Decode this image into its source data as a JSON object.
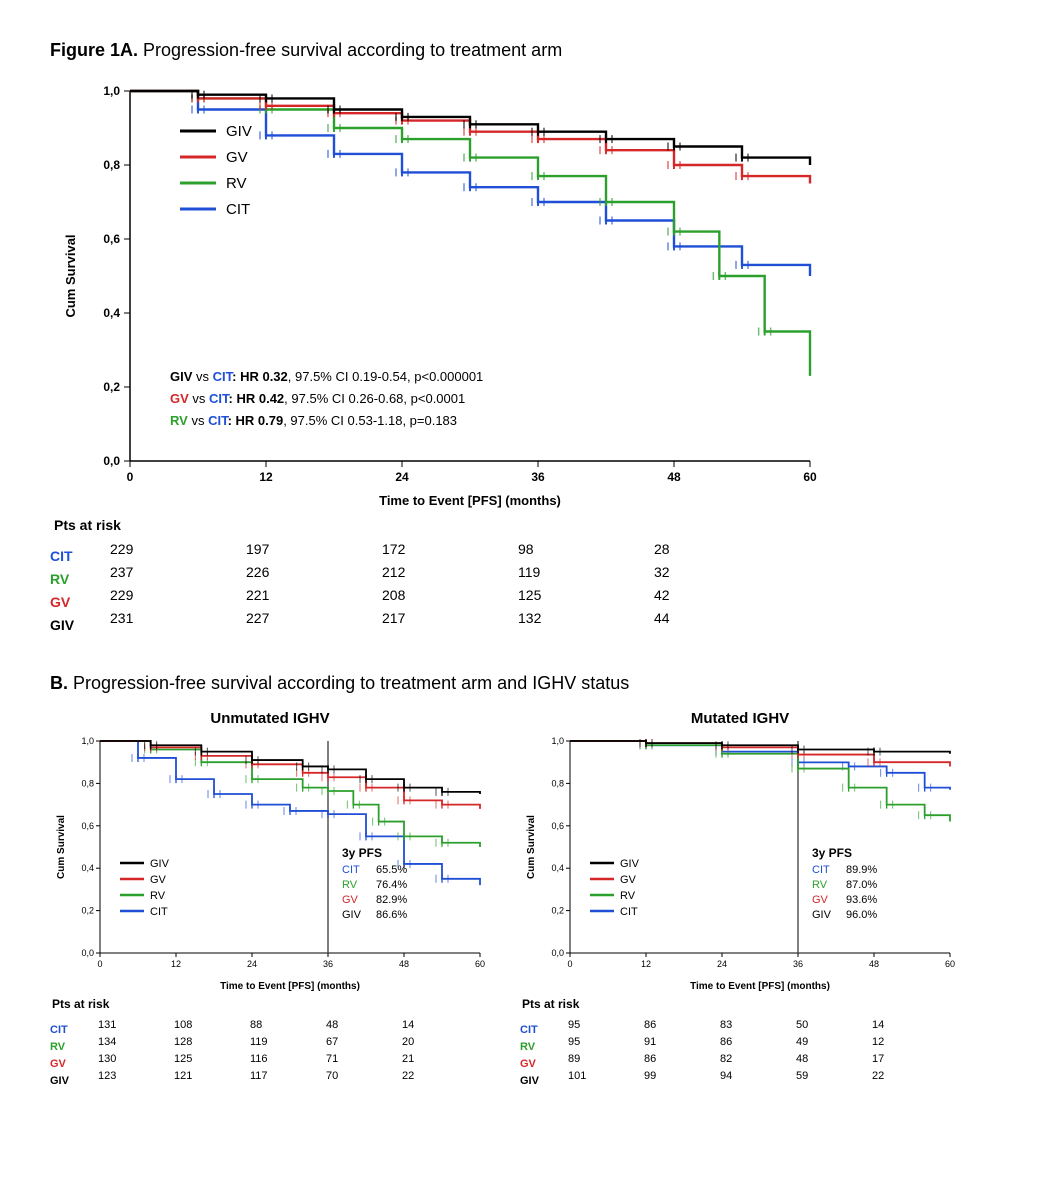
{
  "colors": {
    "GIV": "#000000",
    "GV": "#d62728",
    "RV": "#2ca02c",
    "CIT": "#1f4fd6",
    "axis": "#000000",
    "bg": "#ffffff"
  },
  "figureA": {
    "title_prefix": "Figure 1A.",
    "title_rest": " Progression-free survival according to treatment arm",
    "ylabel": "Cum Survival",
    "xlabel": "Time to Event [PFS] (months)",
    "xlim": [
      0,
      60
    ],
    "ylim": [
      0,
      1.0
    ],
    "xticks": [
      0,
      12,
      24,
      36,
      48,
      60
    ],
    "yticks": [
      "0,0",
      "0,2",
      "0,4",
      "0,6",
      "0,8",
      "1,0"
    ],
    "ytick_vals": [
      0.0,
      0.2,
      0.4,
      0.6,
      0.8,
      1.0
    ],
    "legend": [
      "GIV",
      "GV",
      "RV",
      "CIT"
    ],
    "stats": [
      {
        "arm1": "GIV",
        "arm2": "CIT",
        "text": ": HR 0.32, 97.5% CI 0.19-0.54, p<0.000001",
        "hr_bold": "HR 0.32"
      },
      {
        "arm1": "GV",
        "arm2": "CIT",
        "text": ": HR 0.42, 97.5% CI 0.26-0.68, p<0.0001",
        "hr_bold": "HR 0.42"
      },
      {
        "arm1": "RV",
        "arm2": "CIT",
        "text": ": HR 0.79, 97.5% CI 0.53-1.18, p=0.183",
        "hr_bold": "HR 0.79"
      }
    ],
    "curves": {
      "GIV": [
        [
          0,
          1.0
        ],
        [
          6,
          0.99
        ],
        [
          12,
          0.98
        ],
        [
          18,
          0.95
        ],
        [
          24,
          0.93
        ],
        [
          30,
          0.91
        ],
        [
          36,
          0.89
        ],
        [
          42,
          0.87
        ],
        [
          48,
          0.85
        ],
        [
          54,
          0.82
        ],
        [
          60,
          0.8
        ]
      ],
      "GV": [
        [
          0,
          1.0
        ],
        [
          6,
          0.98
        ],
        [
          12,
          0.96
        ],
        [
          18,
          0.94
        ],
        [
          24,
          0.92
        ],
        [
          30,
          0.89
        ],
        [
          36,
          0.87
        ],
        [
          42,
          0.84
        ],
        [
          48,
          0.8
        ],
        [
          54,
          0.77
        ],
        [
          60,
          0.75
        ]
      ],
      "RV": [
        [
          0,
          1.0
        ],
        [
          6,
          0.98
        ],
        [
          12,
          0.95
        ],
        [
          18,
          0.9
        ],
        [
          24,
          0.87
        ],
        [
          30,
          0.82
        ],
        [
          36,
          0.77
        ],
        [
          42,
          0.7
        ],
        [
          48,
          0.62
        ],
        [
          52,
          0.5
        ],
        [
          56,
          0.35
        ],
        [
          60,
          0.23
        ]
      ],
      "CIT": [
        [
          0,
          1.0
        ],
        [
          6,
          0.95
        ],
        [
          12,
          0.88
        ],
        [
          18,
          0.83
        ],
        [
          24,
          0.78
        ],
        [
          30,
          0.74
        ],
        [
          36,
          0.7
        ],
        [
          42,
          0.65
        ],
        [
          48,
          0.58
        ],
        [
          54,
          0.53
        ],
        [
          60,
          0.5
        ]
      ]
    },
    "risk": {
      "header": "Pts at risk",
      "timepoints": [
        0,
        12,
        24,
        36,
        48
      ],
      "rows": [
        {
          "label": "CIT",
          "color": "CIT",
          "vals": [
            229,
            197,
            172,
            98,
            28
          ]
        },
        {
          "label": "RV",
          "color": "RV",
          "vals": [
            237,
            226,
            212,
            119,
            32
          ]
        },
        {
          "label": "GV",
          "color": "GV",
          "vals": [
            229,
            221,
            208,
            125,
            42
          ]
        },
        {
          "label": "GIV",
          "color": "GIV",
          "vals": [
            231,
            227,
            217,
            132,
            44
          ]
        }
      ]
    },
    "line_width": 2.4,
    "font_axis": 12,
    "font_legend": 15
  },
  "figureB": {
    "title_prefix": "B.",
    "title_rest": " Progression-free survival according to treatment arm and IGHV status",
    "ylabel": "Cum Survival",
    "xlabel": "Time to Event [PFS] (months)",
    "xlim": [
      0,
      60
    ],
    "ylim": [
      0,
      1.0
    ],
    "xticks": [
      0,
      12,
      24,
      36,
      48,
      60
    ],
    "yticks": [
      "0,0",
      "0,2",
      "0,4",
      "0,6",
      "0,8",
      "1,0"
    ],
    "ytick_vals": [
      0.0,
      0.2,
      0.4,
      0.6,
      0.8,
      1.0
    ],
    "legend": [
      "GIV",
      "GV",
      "RV",
      "CIT"
    ],
    "pfs_header": "3y PFS",
    "panels": [
      {
        "name": "Unmutated IGHV",
        "curves": {
          "GIV": [
            [
              0,
              1.0
            ],
            [
              8,
              0.98
            ],
            [
              16,
              0.95
            ],
            [
              24,
              0.91
            ],
            [
              32,
              0.88
            ],
            [
              36,
              0.866
            ],
            [
              42,
              0.82
            ],
            [
              48,
              0.78
            ],
            [
              54,
              0.76
            ],
            [
              60,
              0.75
            ]
          ],
          "GV": [
            [
              0,
              1.0
            ],
            [
              8,
              0.97
            ],
            [
              16,
              0.93
            ],
            [
              24,
              0.89
            ],
            [
              32,
              0.85
            ],
            [
              36,
              0.829
            ],
            [
              42,
              0.78
            ],
            [
              48,
              0.72
            ],
            [
              54,
              0.7
            ],
            [
              60,
              0.68
            ]
          ],
          "RV": [
            [
              0,
              1.0
            ],
            [
              8,
              0.96
            ],
            [
              16,
              0.9
            ],
            [
              24,
              0.82
            ],
            [
              32,
              0.78
            ],
            [
              36,
              0.764
            ],
            [
              40,
              0.7
            ],
            [
              44,
              0.62
            ],
            [
              48,
              0.55
            ],
            [
              54,
              0.52
            ],
            [
              60,
              0.5
            ]
          ],
          "CIT": [
            [
              0,
              1.0
            ],
            [
              6,
              0.92
            ],
            [
              12,
              0.82
            ],
            [
              18,
              0.75
            ],
            [
              24,
              0.7
            ],
            [
              30,
              0.67
            ],
            [
              36,
              0.655
            ],
            [
              42,
              0.55
            ],
            [
              48,
              0.42
            ],
            [
              54,
              0.35
            ],
            [
              60,
              0.32
            ]
          ]
        },
        "pfs": [
          {
            "label": "CIT",
            "val": "65.5%",
            "color": "CIT"
          },
          {
            "label": "RV",
            "val": "76.4%",
            "color": "RV"
          },
          {
            "label": "GV",
            "val": "82.9%",
            "color": "GV"
          },
          {
            "label": "GIV",
            "val": "86.6%",
            "color": "GIV"
          }
        ],
        "risk": {
          "rows": [
            {
              "label": "CIT",
              "color": "CIT",
              "vals": [
                131,
                108,
                88,
                48,
                14
              ]
            },
            {
              "label": "RV",
              "color": "RV",
              "vals": [
                134,
                128,
                119,
                67,
                20
              ]
            },
            {
              "label": "GV",
              "color": "GV",
              "vals": [
                130,
                125,
                116,
                71,
                21
              ]
            },
            {
              "label": "GIV",
              "color": "GIV",
              "vals": [
                123,
                121,
                117,
                70,
                22
              ]
            }
          ]
        }
      },
      {
        "name": "Mutated IGHV",
        "curves": {
          "GIV": [
            [
              0,
              1.0
            ],
            [
              12,
              0.99
            ],
            [
              24,
              0.98
            ],
            [
              36,
              0.96
            ],
            [
              48,
              0.95
            ],
            [
              60,
              0.94
            ]
          ],
          "GV": [
            [
              0,
              1.0
            ],
            [
              12,
              0.99
            ],
            [
              24,
              0.97
            ],
            [
              36,
              0.936
            ],
            [
              48,
              0.9
            ],
            [
              60,
              0.88
            ]
          ],
          "RV": [
            [
              0,
              1.0
            ],
            [
              12,
              0.98
            ],
            [
              24,
              0.94
            ],
            [
              36,
              0.87
            ],
            [
              44,
              0.78
            ],
            [
              50,
              0.7
            ],
            [
              56,
              0.65
            ],
            [
              60,
              0.62
            ]
          ],
          "CIT": [
            [
              0,
              1.0
            ],
            [
              12,
              0.98
            ],
            [
              24,
              0.95
            ],
            [
              36,
              0.899
            ],
            [
              44,
              0.88
            ],
            [
              50,
              0.85
            ],
            [
              56,
              0.78
            ],
            [
              60,
              0.77
            ]
          ]
        },
        "pfs": [
          {
            "label": "CIT",
            "val": "89.9%",
            "color": "CIT"
          },
          {
            "label": "RV",
            "val": "87.0%",
            "color": "RV"
          },
          {
            "label": "GV",
            "val": "93.6%",
            "color": "GV"
          },
          {
            "label": "GIV",
            "val": "96.0%",
            "color": "GIV"
          }
        ],
        "risk": {
          "rows": [
            {
              "label": "CIT",
              "color": "CIT",
              "vals": [
                95,
                86,
                83,
                50,
                14
              ]
            },
            {
              "label": "RV",
              "color": "RV",
              "vals": [
                95,
                91,
                86,
                49,
                12
              ]
            },
            {
              "label": "GV",
              "color": "GV",
              "vals": [
                89,
                86,
                82,
                48,
                17
              ]
            },
            {
              "label": "GIV",
              "color": "GIV",
              "vals": [
                101,
                99,
                94,
                59,
                22
              ]
            }
          ]
        }
      }
    ],
    "risk_header": "Pts at risk",
    "line_width": 1.8,
    "font_axis": 9
  }
}
